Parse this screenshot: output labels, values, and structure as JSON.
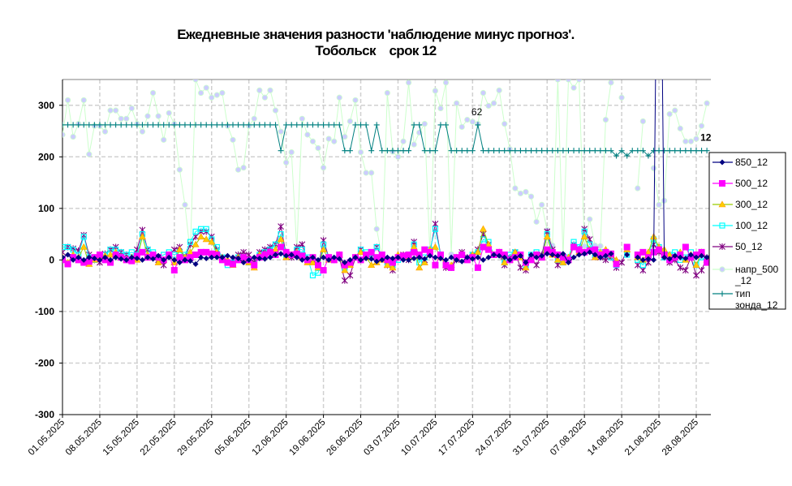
{
  "chart_data": {
    "type": "line",
    "title": [
      "Ежедневные значения разности 'наблюдение минус прогноз'.",
      "Тобольск    срок 12"
    ],
    "xlabel": "",
    "ylabel": "",
    "ylim": [
      -300,
      350
    ],
    "yticks": [
      -300,
      -200,
      -100,
      0,
      100,
      200,
      300
    ],
    "grid": true,
    "legend_placement": "right",
    "xtick_labels": [
      "01.05.2025",
      "08.05.2025",
      "15.05.2025",
      "22.05.2025",
      "29.05.2025",
      "05.06.2025",
      "12.06.2025",
      "19.06.2025",
      "26.06.2025",
      "03 07.2025",
      "10.07.2025",
      "17.07.2025",
      "24.07.2025",
      "31.07.2025",
      "07.08.2025",
      "14.08.2025",
      "21.08.2025",
      "28.08.2025"
    ],
    "x": [
      "01.05.2025",
      "02.05.2025",
      "03.05.2025",
      "04.05.2025",
      "05.05.2025",
      "06.05.2025",
      "07.05.2025",
      "08.05.2025",
      "09.05.2025",
      "10.05.2025",
      "11.05.2025",
      "12.05.2025",
      "13.05.2025",
      "14.05.2025",
      "15.05.2025",
      "16.05.2025",
      "17.05.2025",
      "18.05.2025",
      "19.05.2025",
      "20.05.2025",
      "21.05.2025",
      "22.05.2025",
      "23.05.2025",
      "24.05.2025",
      "25.05.2025",
      "26.05.2025",
      "27.05.2025",
      "28.05.2025",
      "29.05.2025",
      "30.05.2025",
      "31.05.2025",
      "01.06.2025",
      "02.06.2025",
      "03.06.2025",
      "04.06.2025",
      "05.06.2025",
      "06.06.2025",
      "07.06.2025",
      "08.06.2025",
      "09.06.2025",
      "10.06.2025",
      "11.06.2025",
      "12.06.2025",
      "13.06.2025",
      "14.06.2025",
      "15.06.2025",
      "16.06.2025",
      "17.06.2025",
      "18.06.2025",
      "19.06.2025",
      "20.06.2025",
      "21.06.2025",
      "22.06.2025",
      "23.06.2025",
      "24.06.2025",
      "25.06.2025",
      "26.06.2025",
      "27.06.2025",
      "28.06.2025",
      "29.06.2025",
      "30.06.2025",
      "01.07.2025",
      "02.07.2025",
      "03.07.2025",
      "04.07.2025",
      "05.07.2025",
      "06.07.2025",
      "07.07.2025",
      "08.07.2025",
      "09.07.2025",
      "10.07.2025",
      "11.07.2025",
      "12.07.2025",
      "13.07.2025",
      "14.07.2025",
      "15.07.2025",
      "16.07.2025",
      "17.07.2025",
      "18.07.2025",
      "19.07.2025",
      "20.07.2025",
      "21.07.2025",
      "22.07.2025",
      "23.07.2025",
      "24.07.2025",
      "25.07.2025",
      "26.07.2025",
      "27.07.2025",
      "28.07.2025",
      "29.07.2025",
      "30.07.2025",
      "31.07.2025",
      "01.08.2025",
      "02.08.2025",
      "03.08.2025",
      "04.08.2025",
      "05.08.2025",
      "06.08.2025",
      "07.08.2025",
      "08.08.2025",
      "09.08.2025",
      "10.08.2025",
      "11.08.2025",
      "12.08.2025",
      "13.08.2025",
      "14.08.2025",
      "15.08.2025",
      "16.08.2025",
      "17.08.2025",
      "18.08.2025",
      "19.08.2025",
      "20.08.2025",
      "21.08.2025",
      "22.08.2025",
      "23.08.2025",
      "24.08.2025",
      "25.08.2025",
      "26.08.2025",
      "27.08.2025",
      "28.08.2025",
      "29.08.2025",
      "30.08.2025"
    ],
    "series": [
      {
        "name": "850_12",
        "color": "#000080",
        "marker": "diamond",
        "values": [
          5,
          10,
          0,
          5,
          0,
          5,
          3,
          0,
          5,
          0,
          5,
          2,
          0,
          5,
          3,
          0,
          5,
          2,
          8,
          0,
          5,
          0,
          -5,
          0,
          -2,
          -8,
          5,
          3,
          5,
          5,
          5,
          8,
          5,
          3,
          -5,
          0,
          5,
          3,
          2,
          5,
          10,
          12,
          8,
          10,
          5,
          0,
          3,
          5,
          0,
          5,
          0,
          5,
          2,
          -5,
          0,
          5,
          0,
          3,
          2,
          -3,
          0,
          5,
          3,
          5,
          0,
          0,
          3,
          5,
          2,
          8,
          5,
          3,
          0,
          5,
          0,
          -3,
          5,
          2,
          5,
          0,
          5,
          10,
          8,
          5,
          0,
          5,
          8,
          -5,
          10,
          5,
          8,
          12,
          10,
          8,
          12,
          -5,
          5,
          10,
          12,
          15,
          10,
          5,
          8,
          12,
          null,
          null,
          10,
          null,
          5,
          0,
          2,
          0,
          999,
          5,
          2,
          8,
          5,
          3,
          10,
          5,
          8,
          5
        ]
      },
      {
        "name": "500_12",
        "color": "#ff00ff",
        "marker": "square",
        "values": [
          0,
          -8,
          5,
          0,
          -5,
          -3,
          5,
          10,
          0,
          -5,
          10,
          5,
          0,
          -2,
          8,
          15,
          5,
          10,
          5,
          0,
          10,
          -20,
          5,
          0,
          5,
          10,
          15,
          15,
          12,
          10,
          0,
          -5,
          -8,
          0,
          5,
          0,
          -10,
          5,
          10,
          15,
          10,
          25,
          15,
          10,
          12,
          8,
          0,
          5,
          -10,
          -20,
          5,
          0,
          10,
          -10,
          -5,
          5,
          0,
          10,
          15,
          5,
          10,
          0,
          -5,
          5,
          8,
          10,
          15,
          10,
          20,
          15,
          -10,
          10,
          -10,
          -15,
          5,
          10,
          0,
          5,
          -15,
          25,
          20,
          10,
          15,
          10,
          0,
          5,
          10,
          -5,
          0,
          10,
          5,
          20,
          15,
          10,
          5,
          0,
          25,
          20,
          15,
          18,
          20,
          10,
          15,
          12,
          -8,
          null,
          25,
          null,
          10,
          15,
          5,
          15,
          20,
          10,
          0,
          5,
          10,
          25,
          5,
          10,
          15,
          -5
        ]
      },
      {
        "name": "300_12",
        "color": "#99cc00",
        "marker_color": "#ffcc00",
        "marker": "triangle",
        "values": [
          5,
          -5,
          10,
          5,
          25,
          -8,
          0,
          5,
          8,
          10,
          15,
          5,
          0,
          5,
          0,
          45,
          10,
          5,
          -5,
          0,
          10,
          -5,
          20,
          5,
          15,
          30,
          45,
          40,
          35,
          15,
          5,
          0,
          -10,
          5,
          0,
          -5,
          -15,
          10,
          10,
          15,
          20,
          40,
          5,
          10,
          15,
          5,
          -5,
          -5,
          -15,
          20,
          0,
          0,
          10,
          -20,
          -10,
          5,
          15,
          5,
          -10,
          -5,
          0,
          -10,
          -15,
          10,
          5,
          5,
          25,
          -15,
          -5,
          20,
          25,
          5,
          -10,
          -10,
          5,
          10,
          0,
          10,
          15,
          60,
          30,
          10,
          15,
          -5,
          0,
          15,
          5,
          -15,
          0,
          10,
          5,
          45,
          10,
          0,
          -5,
          5,
          25,
          15,
          45,
          20,
          5,
          15,
          20,
          10,
          0,
          null,
          20,
          null,
          5,
          0,
          15,
          45,
          25,
          20,
          10,
          5,
          15,
          0,
          10,
          -10,
          15,
          0
        ]
      },
      {
        "name": "100_12",
        "color": "#00ffff",
        "marker": "open-square",
        "values": [
          25,
          25,
          20,
          10,
          45,
          5,
          0,
          10,
          10,
          20,
          20,
          15,
          10,
          15,
          10,
          50,
          20,
          15,
          5,
          10,
          15,
          10,
          15,
          10,
          35,
          55,
          60,
          60,
          40,
          25,
          5,
          -10,
          -5,
          5,
          0,
          -5,
          -10,
          10,
          15,
          20,
          30,
          50,
          10,
          10,
          20,
          20,
          5,
          -30,
          -25,
          30,
          5,
          0,
          10,
          -15,
          -5,
          5,
          20,
          15,
          5,
          25,
          10,
          -5,
          -10,
          0,
          5,
          10,
          30,
          -5,
          5,
          20,
          60,
          10,
          -10,
          -15,
          5,
          10,
          0,
          10,
          15,
          40,
          35,
          10,
          15,
          -5,
          10,
          15,
          10,
          -10,
          10,
          15,
          5,
          50,
          15,
          0,
          -5,
          5,
          35,
          25,
          55,
          30,
          10,
          15,
          10,
          5,
          -10,
          null,
          10,
          null,
          0,
          -10,
          10,
          40,
          25,
          5,
          10,
          15,
          0,
          5,
          15,
          -10,
          5,
          -5
        ]
      },
      {
        "name": "50_12",
        "color": "#800080",
        "marker": "star",
        "values": [
          15,
          25,
          22,
          18,
          48,
          10,
          0,
          -5,
          12,
          20,
          25,
          15,
          10,
          0,
          20,
          58,
          20,
          10,
          0,
          -10,
          10,
          20,
          25,
          5,
          30,
          45,
          55,
          55,
          45,
          20,
          5,
          -5,
          0,
          10,
          15,
          10,
          -5,
          15,
          20,
          25,
          30,
          65,
          10,
          5,
          25,
          30,
          0,
          0,
          -15,
          38,
          5,
          0,
          5,
          -40,
          -30,
          5,
          20,
          10,
          5,
          25,
          5,
          -10,
          -20,
          5,
          10,
          0,
          35,
          5,
          0,
          15,
          70,
          10,
          -15,
          -15,
          0,
          15,
          5,
          10,
          20,
          50,
          30,
          10,
          10,
          -10,
          5,
          15,
          -15,
          -20,
          5,
          -10,
          10,
          55,
          20,
          -10,
          5,
          0,
          30,
          20,
          60,
          40,
          10,
          5,
          0,
          5,
          -15,
          -5,
          20,
          null,
          -10,
          -20,
          -5,
          30,
          15,
          5,
          -5,
          0,
          -15,
          -20,
          5,
          -30,
          -20,
          5
        ]
      },
      {
        "name": "напр_500 _12",
        "color": "#ccffcc",
        "marker_color": "#ccccff",
        "marker": "dot",
        "values": [
          243,
          310,
          239,
          264,
          310,
          205,
          260,
          260,
          249,
          290,
          290,
          274,
          274,
          294,
          264,
          249,
          279,
          324,
          279,
          233,
          285,
          264,
          175,
          107,
          13,
          350,
          324,
          334,
          315,
          320,
          324,
          260,
          233,
          175,
          179,
          260,
          274,
          329,
          315,
          329,
          290,
          249,
          189,
          209,
          19,
          274,
          243,
          230,
          217,
          179,
          235,
          230,
          315,
          239,
          269,
          310,
          209,
          169,
          169,
          60,
          5,
          324,
          210,
          200,
          230,
          344,
          224,
          247,
          264,
          13,
          328,
          294,
          344,
          11,
          304,
          258,
          272,
          268,
          264,
          324,
          299,
          304,
          329,
          264,
          215,
          139,
          129,
          132,
          123,
          74,
          107,
          58,
          28,
          350,
          5,
          350,
          334,
          350,
          27,
          79,
          28,
          27,
          272,
          344,
          null,
          315,
          null,
          null,
          139,
          269,
          null,
          178,
          107,
          115,
          283,
          290,
          255,
          230,
          230,
          235,
          260,
          304
        ]
      },
      {
        "name": "тип зонда_12",
        "color": "#008080",
        "marker": "plus",
        "values": [
          262,
          262,
          262,
          262,
          262,
          262,
          262,
          262,
          262,
          262,
          262,
          262,
          262,
          262,
          262,
          262,
          262,
          262,
          262,
          262,
          262,
          262,
          262,
          262,
          262,
          262,
          262,
          262,
          262,
          262,
          262,
          262,
          262,
          262,
          262,
          262,
          262,
          262,
          262,
          262,
          262,
          212,
          262,
          262,
          262,
          262,
          262,
          262,
          262,
          262,
          262,
          262,
          262,
          212,
          212,
          262,
          262,
          262,
          212,
          262,
          212,
          212,
          212,
          212,
          212,
          212,
          262,
          262,
          212,
          212,
          212,
          262,
          262,
          212,
          212,
          212,
          212,
          212,
          262,
          212,
          212,
          212,
          212,
          212,
          212,
          212,
          212,
          212,
          212,
          212,
          212,
          212,
          212,
          212,
          212,
          212,
          212,
          212,
          212,
          212,
          212,
          212,
          212,
          212,
          202,
          212,
          202,
          212,
          212,
          212,
          202,
          212,
          212,
          212,
          212,
          212,
          212,
          212,
          212,
          212,
          212,
          212
        ]
      }
    ],
    "annotations": [
      {
        "series": "тип зонда_12",
        "x": "18.07.2025",
        "text": "62"
      },
      {
        "series": "тип зонда_12",
        "x": "30.08.2025",
        "text": "12"
      }
    ]
  }
}
